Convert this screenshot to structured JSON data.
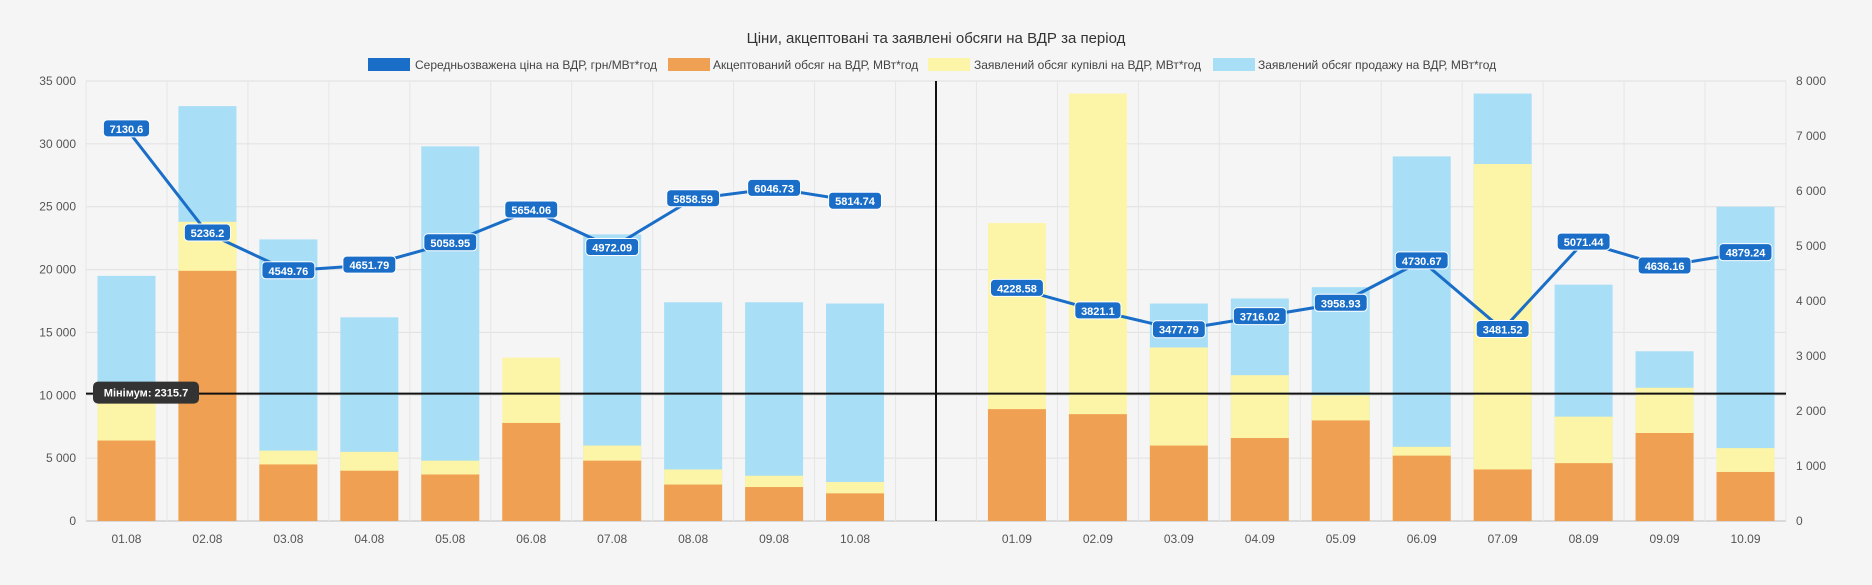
{
  "chart_data": {
    "type": "bar",
    "title": "Ціни, акцептовані та заявлені обсяги на ВДР за період",
    "legend": [
      {
        "name": "Середньозважена ціна на ВДР, грн/МВт*год",
        "color": "#1a6ec8"
      },
      {
        "name": "Акцептований обсяг на ВДР, МВт*год",
        "color": "#f0a052"
      },
      {
        "name": "Заявлений обсяг купівлі на ВДР, МВт*год",
        "color": "#fcf5a8"
      },
      {
        "name": "Заявлений обсяг продажу на ВДР, МВт*год",
        "color": "#a8def6"
      }
    ],
    "left_axis": {
      "min": 0,
      "max": 35000,
      "ticks": [
        "0",
        "5 000",
        "10 000",
        "15 000",
        "20 000",
        "25 000",
        "30 000",
        "35 000"
      ]
    },
    "right_axis": {
      "min": 0,
      "max": 8000,
      "ticks": [
        "0",
        "1 000",
        "2 000",
        "3 000",
        "4 000",
        "5 000",
        "6 000",
        "7 000",
        "8 000"
      ]
    },
    "groups": [
      {
        "categories": [
          "01.08",
          "02.08",
          "03.08",
          "04.08",
          "05.08",
          "06.08",
          "07.08",
          "08.08",
          "09.08",
          "10.08"
        ],
        "accepted": [
          6400,
          19900,
          4500,
          4000,
          3700,
          7800,
          4800,
          2900,
          2700,
          2200
        ],
        "buy_top": [
          9700,
          23800,
          5600,
          5500,
          4800,
          13000,
          6000,
          4100,
          3600,
          3100
        ],
        "sell_top": [
          19500,
          33000,
          22400,
          16200,
          29800,
          0,
          22800,
          17400,
          17400,
          17300
        ],
        "price": [
          7130.6,
          5236.2,
          4549.76,
          4651.79,
          5058.95,
          5654.06,
          4972.09,
          5858.59,
          6046.73,
          5814.74
        ],
        "price_labels": [
          "7130.6",
          "5236.2",
          "4549.76",
          "4651.79",
          "5058.95",
          "5654.06",
          "4972.09",
          "5858.59",
          "6046.73",
          "5814.74"
        ]
      },
      {
        "categories": [
          "01.09",
          "02.09",
          "03.09",
          "04.09",
          "05.09",
          "06.09",
          "07.09",
          "08.09",
          "09.09",
          "10.09"
        ],
        "accepted": [
          8900,
          8500,
          6000,
          6600,
          8000,
          5200,
          4100,
          4600,
          7000,
          3900
        ],
        "buy_top": [
          23700,
          34000,
          13800,
          11600,
          10000,
          5900,
          28400,
          8300,
          10600,
          5800
        ],
        "sell_top": [
          0,
          0,
          17300,
          17700,
          18600,
          29000,
          34000,
          18800,
          13500,
          25000
        ],
        "price": [
          4228.58,
          3821.1,
          3477.79,
          3716.02,
          3958.93,
          4730.67,
          3481.52,
          5071.44,
          4636.16,
          4879.24
        ],
        "price_labels": [
          "4228.58",
          "3821.1",
          "3477.79",
          "3716.02",
          "3958.93",
          "4730.67",
          "3481.52",
          "5071.44",
          "4636.16",
          "4879.24"
        ]
      }
    ],
    "min_line": {
      "value": 2315.7,
      "label": "Мінімум: 2315.7"
    }
  }
}
